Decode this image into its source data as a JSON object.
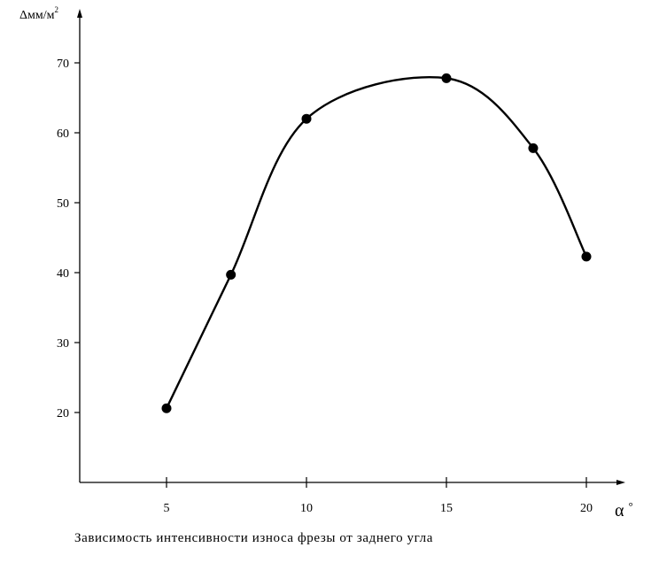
{
  "chart_data": {
    "type": "line",
    "title": "",
    "xlabel_symbol": "α",
    "xlabel_degree": "°",
    "ylabel_symbol": "Δ",
    "ylabel_unit": "мм/м",
    "ylabel_sup": "2",
    "x_ticks": [
      5,
      10,
      15,
      20
    ],
    "y_ticks": [
      20,
      30,
      40,
      50,
      60,
      70
    ],
    "xlim": [
      2,
      24
    ],
    "ylim": [
      10,
      80
    ],
    "series": [
      {
        "points": [
          {
            "x": 5,
            "y": 20.6
          },
          {
            "x": 7.3,
            "y": 39.7
          },
          {
            "x": 10,
            "y": 62
          },
          {
            "x": 15,
            "y": 67.8
          },
          {
            "x": 18.1,
            "y": 57.8
          },
          {
            "x": 20,
            "y": 42.3
          }
        ]
      }
    ],
    "grid": false,
    "legend": "none"
  },
  "caption": "Зависимость интенсивности износа фрезы от заднего угла"
}
